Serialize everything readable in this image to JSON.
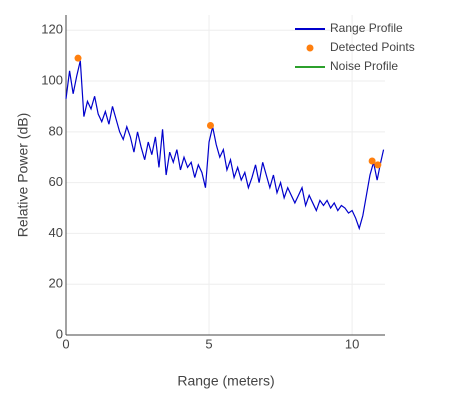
{
  "chart_data": {
    "type": "line",
    "xlabel": "Range (meters)",
    "ylabel": "Relative Power (dB)",
    "xlim": [
      0,
      11.15
    ],
    "ylim": [
      0,
      126
    ],
    "xticks": [
      0,
      5,
      10
    ],
    "yticks": [
      0,
      20,
      40,
      60,
      80,
      100,
      120
    ],
    "grid": true,
    "legend": "top-right",
    "series": [
      {
        "name": "Range Profile",
        "color": "#0000cc",
        "mode": "line",
        "x": [
          0,
          0.125,
          0.25,
          0.375,
          0.5,
          0.625,
          0.75,
          0.875,
          1.0,
          1.125,
          1.25,
          1.375,
          1.5,
          1.625,
          1.75,
          1.875,
          2.0,
          2.125,
          2.25,
          2.375,
          2.5,
          2.625,
          2.75,
          2.875,
          3.0,
          3.125,
          3.25,
          3.375,
          3.5,
          3.625,
          3.75,
          3.875,
          4.0,
          4.125,
          4.25,
          4.375,
          4.5,
          4.625,
          4.75,
          4.875,
          5.0,
          5.125,
          5.25,
          5.375,
          5.5,
          5.625,
          5.75,
          5.875,
          6.0,
          6.125,
          6.25,
          6.375,
          6.5,
          6.625,
          6.75,
          6.875,
          7.0,
          7.125,
          7.25,
          7.375,
          7.5,
          7.625,
          7.75,
          7.875,
          8.0,
          8.125,
          8.25,
          8.375,
          8.5,
          8.625,
          8.75,
          8.875,
          9.0,
          9.125,
          9.25,
          9.375,
          9.5,
          9.625,
          9.75,
          9.875,
          10.0,
          10.125,
          10.25,
          10.375,
          10.5,
          10.625,
          10.75,
          10.875,
          11.0,
          11.1
        ],
        "values": [
          93,
          104,
          95,
          102,
          108,
          86,
          92,
          89,
          94,
          87,
          84,
          88,
          83,
          90,
          85,
          80,
          77,
          82,
          78,
          72,
          80,
          74,
          69,
          76,
          71,
          78,
          66,
          81,
          63,
          72,
          68,
          73,
          65,
          70,
          66,
          68,
          62,
          67,
          64,
          58,
          76,
          82,
          75,
          70,
          73,
          65,
          69,
          62,
          66,
          61,
          64,
          58,
          62,
          67,
          60,
          68,
          63,
          58,
          63,
          56,
          60,
          54,
          58,
          55,
          52,
          55,
          58,
          51,
          55,
          52,
          49,
          53,
          51,
          53,
          50,
          52,
          49,
          51,
          50,
          48,
          49,
          46,
          42,
          47,
          55,
          63,
          68,
          61,
          68,
          73
        ]
      },
      {
        "name": "Detected Points",
        "color": "#ff7f0e",
        "mode": "markers",
        "x": [
          0.42,
          5.05,
          10.7,
          10.9
        ],
        "values": [
          109,
          82.5,
          68.5,
          67
        ]
      },
      {
        "name": "Noise Profile",
        "color": "#2ca02c",
        "mode": "line",
        "x": [],
        "values": []
      }
    ]
  }
}
